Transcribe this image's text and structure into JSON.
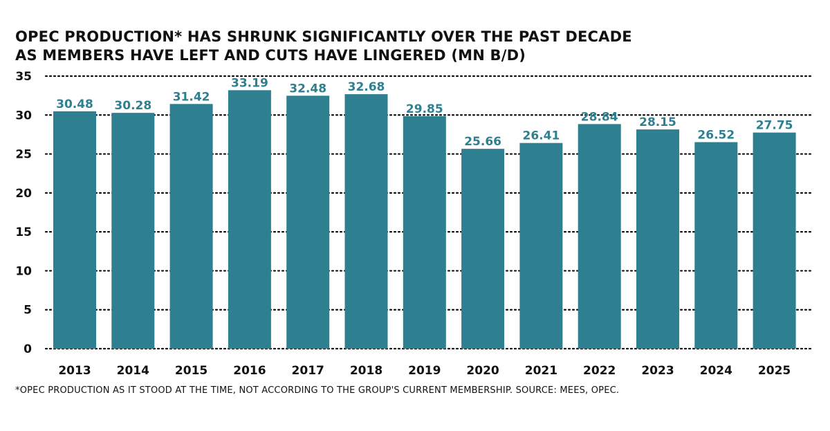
{
  "title": {
    "line1": "OPEC PRODUCTION* HAS SHRUNK SIGNIFICANTLY OVER THE PAST DECADE",
    "line2": "AS MEMBERS HAVE LEFT AND CUTS HAVE LINGERED (MN B/D)"
  },
  "footnote": "*OPEC PRODUCTION AS IT STOOD AT THE TIME, NOT ACCORDING TO THE GROUP'S CURRENT MEMBERSHIP. SOURCE: MEES, OPEC.",
  "colors": {
    "bar": "#2e7f8f",
    "label": "#2e7f8f",
    "grid": "#111111",
    "text": "#111111"
  },
  "chart_data": {
    "type": "bar",
    "categories": [
      "2013",
      "2014",
      "2015",
      "2016",
      "2017",
      "2018",
      "2019",
      "2020",
      "2021",
      "2022",
      "2023",
      "2024",
      "2025"
    ],
    "values": [
      30.48,
      30.28,
      31.42,
      33.19,
      32.48,
      32.68,
      29.85,
      25.66,
      26.41,
      28.84,
      28.15,
      26.52,
      27.75
    ],
    "value_labels": [
      "30.48",
      "30.28",
      "31.42",
      "33.19",
      "32.48",
      "32.68",
      "29.85",
      "25.66",
      "26.41",
      "28.84",
      "28.15",
      "26.52",
      "27.75"
    ],
    "yticks": [
      0,
      5,
      10,
      15,
      20,
      25,
      30,
      35
    ],
    "ylim": [
      0,
      35
    ],
    "grid": "dotted horizontal",
    "xlabel": "",
    "ylabel": ""
  }
}
